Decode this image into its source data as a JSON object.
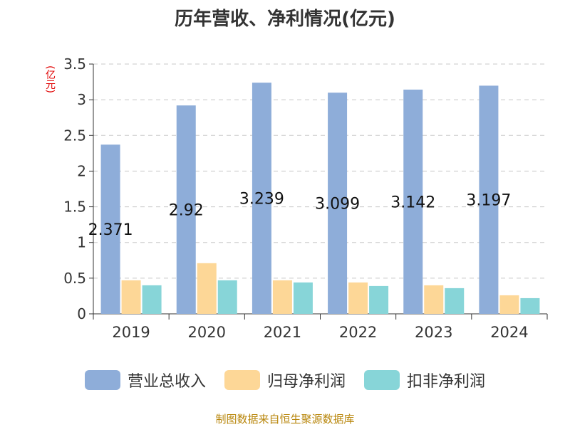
{
  "chart_data": {
    "type": "bar",
    "title": "历年营收、净利情况(亿元)",
    "unit": "(亿元)",
    "source": "制图数据来自恒生聚源数据库",
    "categories": [
      "2019",
      "2020",
      "2021",
      "2022",
      "2023",
      "2024"
    ],
    "ylim": [
      0,
      3.5
    ],
    "yticks": [
      "0",
      "0.5",
      "1",
      "1.5",
      "2",
      "2.5",
      "3",
      "3.5"
    ],
    "grid": true,
    "legend_position": "bottom",
    "series": [
      {
        "name": "营业总收入",
        "color": "#8eadd9",
        "values": [
          2.371,
          2.92,
          3.239,
          3.099,
          3.142,
          3.197
        ],
        "labels": [
          "2.371",
          "2.92",
          "3.239",
          "3.099",
          "3.142",
          "3.197"
        ]
      },
      {
        "name": "归母净利润",
        "color": "#fdd797",
        "values": [
          0.47,
          0.71,
          0.47,
          0.44,
          0.4,
          0.26
        ]
      },
      {
        "name": "扣非净利润",
        "color": "#87d5d8",
        "values": [
          0.4,
          0.47,
          0.44,
          0.39,
          0.36,
          0.22
        ]
      }
    ]
  }
}
